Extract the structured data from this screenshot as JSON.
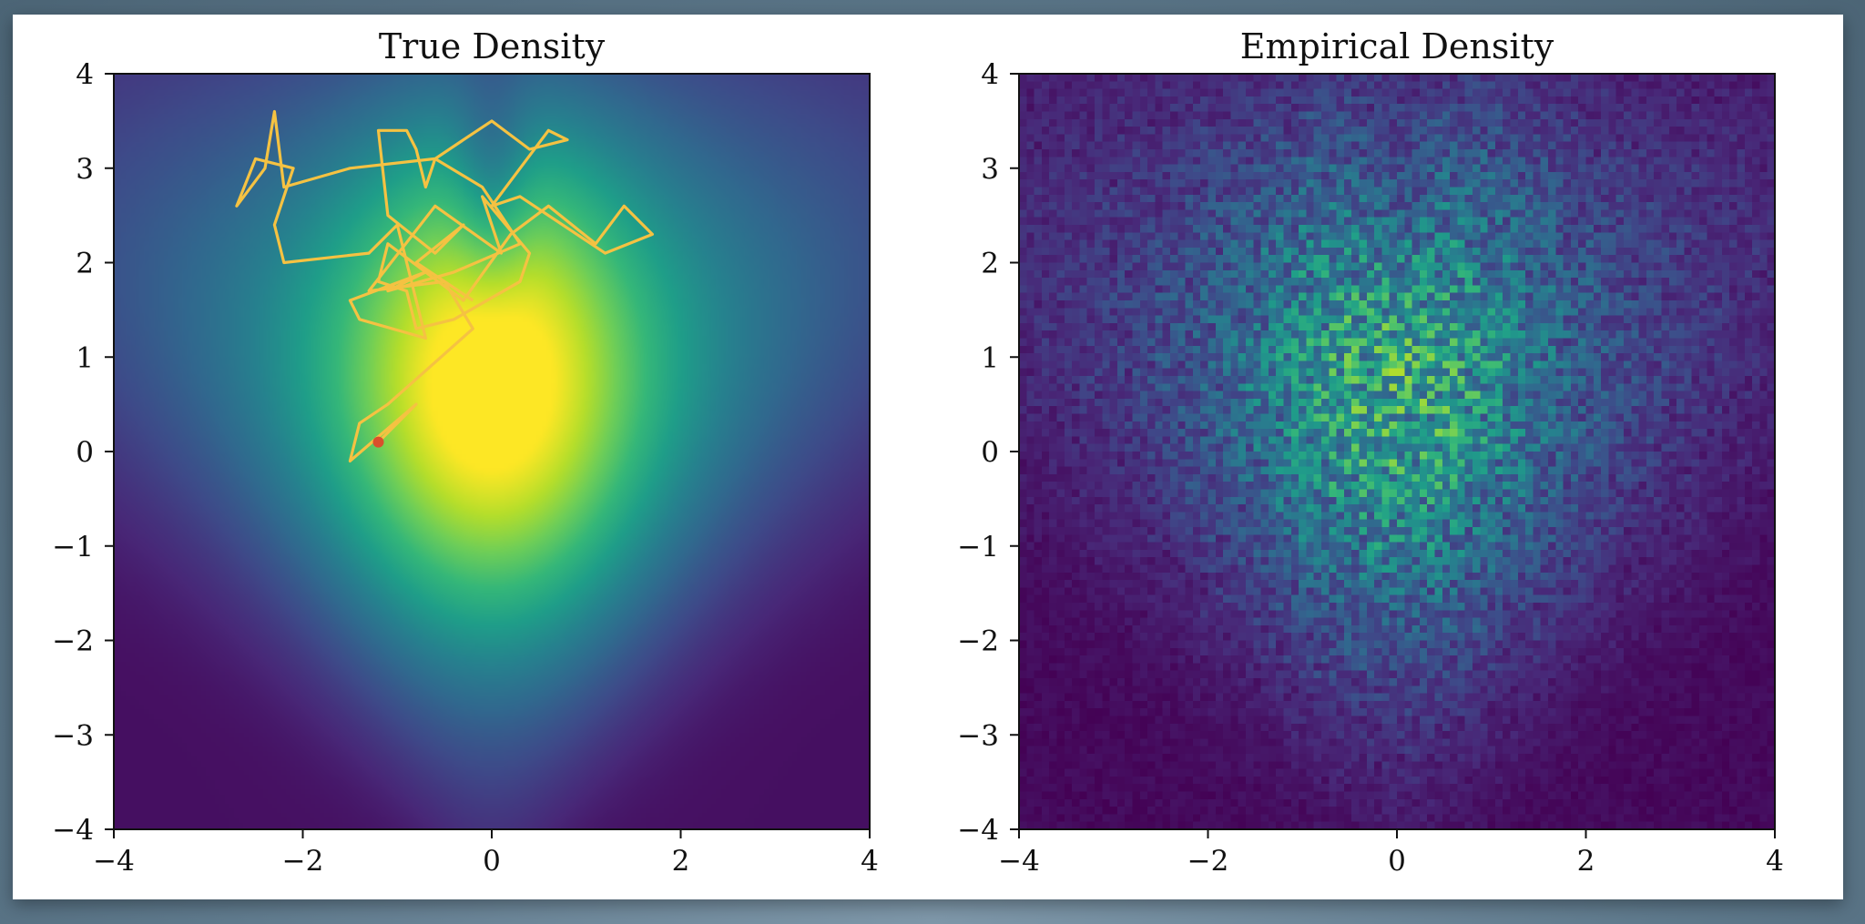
{
  "window": {
    "bg_color": "#5f7a8d",
    "card_color": "#ffffff"
  },
  "chart_data": [
    {
      "type": "heatmap",
      "title": "True Density",
      "xlabel": "",
      "ylabel": "",
      "xlim": [
        -4,
        4
      ],
      "ylim": [
        -4,
        4
      ],
      "xticks": [
        -4,
        -2,
        0,
        2,
        4
      ],
      "yticks": [
        -4,
        -3,
        -2,
        -1,
        0,
        1,
        2,
        3,
        4
      ],
      "xtick_labels": [
        "−4",
        "−2",
        "0",
        "2",
        "4"
      ],
      "ytick_labels": [
        "−4",
        "−3",
        "−2",
        "−1",
        "0",
        "1",
        "2",
        "3",
        "4"
      ],
      "grid": false,
      "colormap": "viridis",
      "trace_color": "#f5c242",
      "trace_start_color": "#d9502c",
      "trace": {
        "x": [
          -1.2,
          -0.9,
          -0.8,
          -1.5,
          -1.4,
          -1.1,
          -0.2,
          -0.5,
          -1.3,
          -0.6,
          0.1,
          -0.1,
          0.4,
          0.3,
          -0.4,
          -0.8,
          -0.9,
          -1.2,
          -1.1,
          -0.3,
          0.2,
          0.6,
          1.1,
          1.4,
          1.7,
          1.2,
          0.3,
          0.0,
          0.6,
          0.8,
          0.4,
          0.0,
          -0.3,
          -0.6,
          -0.1,
          0.3,
          -0.4,
          -1.1,
          -0.7,
          -1.5,
          -1.4,
          -0.7,
          -1.0,
          -1.3,
          -2.2,
          -2.3,
          -2.1,
          -2.5,
          -2.7,
          -2.4,
          -2.3,
          -2.2,
          -1.5,
          -0.6,
          -0.7,
          -0.8,
          -0.9,
          -1.2,
          -1.1,
          -0.6,
          -0.3,
          -0.8,
          -0.2
        ],
        "y": [
          0.1,
          0.4,
          0.5,
          -0.1,
          0.3,
          0.5,
          1.3,
          1.8,
          1.7,
          2.6,
          2.1,
          2.7,
          2.1,
          1.8,
          1.4,
          1.3,
          1.7,
          1.8,
          2.2,
          1.6,
          2.3,
          2.6,
          2.2,
          2.6,
          2.3,
          2.1,
          2.7,
          2.6,
          3.4,
          3.3,
          3.2,
          3.5,
          3.3,
          3.1,
          2.8,
          2.2,
          1.9,
          1.7,
          1.9,
          1.6,
          1.4,
          1.2,
          2.4,
          2.1,
          2.0,
          2.4,
          3.0,
          3.1,
          2.6,
          3.0,
          3.6,
          2.8,
          3.0,
          3.1,
          2.8,
          3.2,
          3.4,
          3.4,
          2.5,
          2.1,
          2.4,
          2.0,
          1.6
        ]
      }
    },
    {
      "type": "heatmap",
      "title": "Empirical Density",
      "xlabel": "",
      "ylabel": "",
      "xlim": [
        -4,
        4
      ],
      "ylim": [
        -4,
        4
      ],
      "xticks": [
        -4,
        -2,
        0,
        2,
        4
      ],
      "yticks": [
        -4,
        -3,
        -2,
        -1,
        0,
        1,
        2,
        3,
        4
      ],
      "xtick_labels": [
        "−4",
        "−2",
        "0",
        "2",
        "4"
      ],
      "ytick_labels": [
        "−4",
        "−3",
        "−2",
        "−1",
        "0",
        "1",
        "2",
        "3",
        "4"
      ],
      "grid": false,
      "colormap": "viridis",
      "bins": 100
    }
  ]
}
